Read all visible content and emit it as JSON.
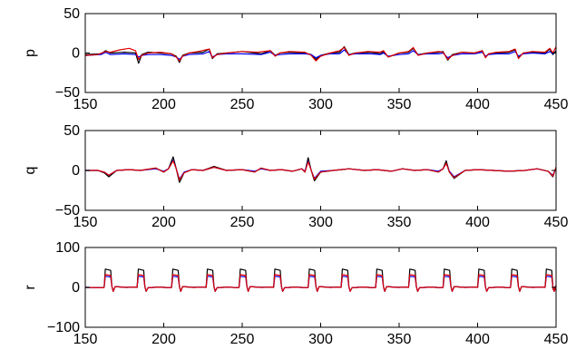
{
  "chart_data": [
    {
      "type": "line",
      "ylabel": "p",
      "xlim": [
        150,
        450
      ],
      "ylim": [
        -50,
        50
      ],
      "xticks": [
        150,
        200,
        250,
        300,
        350,
        400,
        450
      ],
      "yticks": [
        -50,
        0,
        50
      ],
      "xtick_labels": [
        "150",
        "200",
        "250",
        "300",
        "350",
        "400",
        "450"
      ],
      "ytick_labels": [
        "−50",
        "0",
        "50"
      ],
      "grid": false,
      "series": [
        {
          "color": "#000000",
          "x": [
            150,
            160,
            163,
            166,
            175,
            182,
            184,
            186,
            190,
            198,
            205,
            208,
            210,
            212,
            216,
            225,
            229,
            231,
            234,
            240,
            250,
            262,
            268,
            271,
            274,
            280,
            290,
            294,
            297,
            300,
            306,
            312,
            315,
            318,
            322,
            332,
            338,
            340,
            343,
            350,
            356,
            359,
            362,
            368,
            375,
            378,
            381,
            384,
            390,
            398,
            403,
            405,
            407,
            412,
            420,
            424,
            426,
            429,
            435,
            443,
            446,
            448,
            450
          ],
          "y": [
            -2,
            -1,
            3,
            0,
            1,
            0,
            -13,
            -2,
            1,
            0,
            -1,
            -4,
            -12,
            -3,
            0,
            1,
            5,
            -7,
            -1,
            0,
            2,
            -1,
            3,
            -3,
            0,
            1,
            0,
            -2,
            -8,
            -3,
            0,
            1,
            8,
            -2,
            0,
            1,
            -1,
            2,
            -5,
            0,
            1,
            6,
            -2,
            0,
            1,
            2,
            -9,
            -2,
            1,
            0,
            3,
            -5,
            -1,
            0,
            1,
            4,
            -6,
            0,
            1,
            0,
            5,
            -2,
            3
          ]
        },
        {
          "color": "#0000ff",
          "x": [
            150,
            160,
            163,
            166,
            175,
            182,
            184,
            186,
            190,
            198,
            205,
            208,
            210,
            212,
            216,
            225,
            229,
            231,
            234,
            240,
            250,
            262,
            268,
            271,
            274,
            280,
            290,
            294,
            297,
            300,
            306,
            312,
            315,
            318,
            322,
            332,
            338,
            340,
            343,
            350,
            356,
            359,
            362,
            368,
            375,
            378,
            381,
            384,
            390,
            398,
            403,
            405,
            407,
            412,
            420,
            424,
            426,
            429,
            435,
            443,
            446,
            448,
            450
          ],
          "y": [
            -3,
            -2,
            1,
            -2,
            -1,
            -2,
            -5,
            -3,
            -2,
            -2,
            -3,
            -5,
            -8,
            -4,
            -2,
            -1,
            2,
            -5,
            -2,
            -1,
            -1,
            -2,
            1,
            -3,
            -2,
            -1,
            -1,
            -2,
            -6,
            -3,
            -1,
            -1,
            4,
            -2,
            -1,
            -1,
            -2,
            0,
            -4,
            -2,
            -1,
            3,
            -2,
            -1,
            -1,
            0,
            -6,
            -3,
            -1,
            -1,
            1,
            -4,
            -2,
            -1,
            -1,
            2,
            -4,
            -1,
            0,
            -1,
            2,
            -1,
            1
          ]
        },
        {
          "color": "#e00000",
          "x": [
            150,
            158,
            163,
            166,
            172,
            178,
            182,
            184,
            186,
            190,
            198,
            205,
            208,
            210,
            212,
            216,
            222,
            229,
            231,
            234,
            240,
            250,
            260,
            268,
            271,
            274,
            280,
            290,
            294,
            297,
            300,
            306,
            312,
            315,
            318,
            322,
            330,
            338,
            340,
            343,
            350,
            356,
            359,
            362,
            368,
            375,
            378,
            381,
            384,
            390,
            398,
            403,
            405,
            407,
            412,
            420,
            424,
            426,
            429,
            435,
            443,
            446,
            448,
            450
          ],
          "y": [
            -3,
            -2,
            2,
            1,
            4,
            6,
            3,
            -8,
            -3,
            0,
            1,
            -1,
            -5,
            -10,
            -4,
            0,
            2,
            5,
            -6,
            -2,
            0,
            2,
            1,
            3,
            -4,
            0,
            2,
            1,
            -3,
            -10,
            -4,
            0,
            3,
            7,
            -3,
            0,
            2,
            1,
            3,
            -5,
            0,
            2,
            7,
            -3,
            0,
            2,
            1,
            -8,
            -3,
            1,
            0,
            3,
            -6,
            -1,
            1,
            2,
            5,
            -7,
            0,
            2,
            1,
            6,
            0,
            8
          ]
        }
      ]
    },
    {
      "type": "line",
      "ylabel": "q",
      "xlim": [
        150,
        450
      ],
      "ylim": [
        -50,
        50
      ],
      "xticks": [
        150,
        200,
        250,
        300,
        350,
        400,
        450
      ],
      "yticks": [
        -50,
        0,
        50
      ],
      "xtick_labels": [
        "150",
        "200",
        "250",
        "300",
        "350",
        "400",
        "450"
      ],
      "ytick_labels": [
        "−50",
        "0",
        "50"
      ],
      "grid": false,
      "series": [
        {
          "color": "#000000",
          "x": [
            150,
            158,
            162,
            165,
            170,
            178,
            185,
            195,
            200,
            203,
            206,
            208,
            210,
            213,
            218,
            225,
            232,
            240,
            250,
            258,
            262,
            268,
            275,
            282,
            288,
            290,
            292,
            294,
            296,
            300,
            308,
            318,
            328,
            336,
            345,
            352,
            360,
            368,
            375,
            378,
            380,
            382,
            385,
            392,
            400,
            410,
            420,
            430,
            438,
            445,
            448,
            450
          ],
          "y": [
            0,
            0,
            -3,
            -8,
            0,
            1,
            0,
            3,
            -2,
            2,
            17,
            2,
            -15,
            -3,
            1,
            0,
            5,
            0,
            1,
            -2,
            3,
            0,
            1,
            -1,
            2,
            -2,
            16,
            0,
            -13,
            -2,
            0,
            2,
            0,
            1,
            -1,
            2,
            0,
            1,
            -2,
            2,
            12,
            -2,
            -10,
            0,
            1,
            0,
            -1,
            0,
            2,
            -1,
            -8,
            4
          ]
        },
        {
          "color": "#0000ff",
          "x": [
            150,
            158,
            162,
            165,
            170,
            178,
            185,
            195,
            200,
            203,
            206,
            208,
            210,
            213,
            218,
            225,
            232,
            240,
            250,
            258,
            262,
            268,
            275,
            282,
            288,
            290,
            292,
            294,
            296,
            300,
            308,
            318,
            328,
            336,
            345,
            352,
            360,
            368,
            375,
            378,
            380,
            382,
            385,
            392,
            400,
            410,
            420,
            430,
            438,
            445,
            448,
            450
          ],
          "y": [
            0,
            0,
            -2,
            -6,
            0,
            1,
            0,
            2,
            -1,
            2,
            13,
            2,
            -11,
            -2,
            1,
            0,
            4,
            0,
            1,
            -1,
            2,
            0,
            1,
            -1,
            2,
            -1,
            12,
            0,
            -10,
            -1,
            0,
            2,
            0,
            1,
            -1,
            2,
            0,
            1,
            -1,
            2,
            9,
            -1,
            -8,
            0,
            1,
            0,
            -1,
            0,
            2,
            -1,
            -6,
            3
          ]
        },
        {
          "color": "#e00000",
          "x": [
            150,
            158,
            162,
            165,
            170,
            178,
            185,
            195,
            200,
            203,
            206,
            208,
            210,
            213,
            218,
            225,
            232,
            240,
            250,
            258,
            262,
            268,
            275,
            282,
            288,
            290,
            292,
            294,
            296,
            300,
            308,
            318,
            328,
            336,
            345,
            352,
            360,
            368,
            375,
            378,
            380,
            382,
            385,
            392,
            400,
            410,
            420,
            430,
            438,
            445,
            448,
            450
          ],
          "y": [
            0,
            0,
            -2,
            -6,
            0,
            1,
            0,
            3,
            -2,
            2,
            12,
            2,
            -12,
            -3,
            1,
            0,
            4,
            0,
            1,
            -2,
            3,
            0,
            1,
            -1,
            2,
            -2,
            11,
            0,
            -11,
            -2,
            0,
            2,
            0,
            1,
            -1,
            2,
            0,
            1,
            -2,
            2,
            9,
            -2,
            -9,
            0,
            1,
            0,
            -1,
            0,
            2,
            -1,
            -7,
            4
          ]
        }
      ]
    },
    {
      "type": "line",
      "ylabel": "r",
      "xlim": [
        150,
        450
      ],
      "ylim": [
        -100,
        100
      ],
      "xticks": [
        150,
        200,
        250,
        300,
        350,
        400,
        450
      ],
      "yticks": [
        -100,
        0,
        100
      ],
      "xtick_labels": [
        "150",
        "200",
        "250",
        "300",
        "350",
        "400",
        "450"
      ],
      "ytick_labels": [
        "−100",
        "0",
        "100"
      ],
      "grid": false,
      "pulses": {
        "starts": [
          162,
          183,
          205,
          227,
          248,
          270,
          292,
          313,
          335,
          356,
          378,
          400,
          421,
          443
        ],
        "width": 5,
        "baseline": 0,
        "black_peak": 46,
        "blue_peak": 28,
        "red_peak": 32,
        "undershoot": -10
      }
    }
  ]
}
